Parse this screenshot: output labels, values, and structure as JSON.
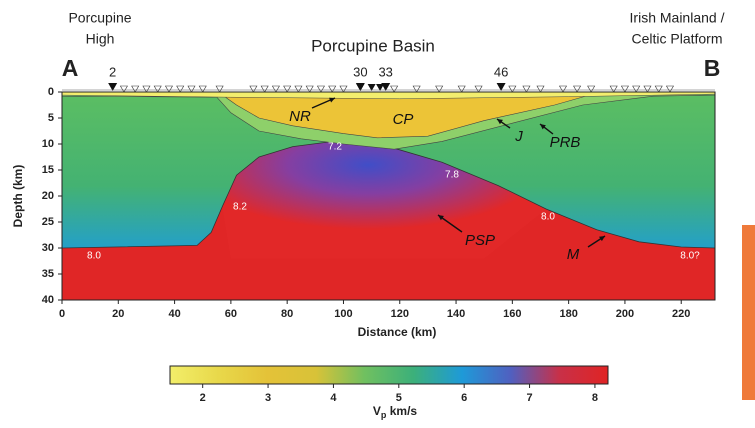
{
  "chart_data": {
    "type": "section",
    "title": "Porcupine Basin",
    "left_region": [
      "Porcupine",
      "High"
    ],
    "right_region": [
      "Irish Mainland /",
      "Celtic Platform"
    ],
    "profile_start": "A",
    "profile_end": "B",
    "stations": {
      "labels": [
        2,
        30,
        33,
        46
      ],
      "x": [
        18,
        106,
        115,
        156
      ]
    },
    "xlabel": "Distance (km)",
    "ylabel": "Depth (km)",
    "xlim": [
      0,
      232
    ],
    "ylim": [
      0,
      40
    ],
    "inverted_y": true,
    "xticks": [
      0,
      20,
      40,
      60,
      80,
      100,
      120,
      140,
      160,
      180,
      200,
      220
    ],
    "yticks": [
      0,
      5,
      10,
      15,
      20,
      25,
      30,
      35,
      40
    ],
    "annotations": [
      "NR",
      "CP",
      "J",
      "PRB",
      "PSP",
      "M"
    ],
    "velocity_labels": [
      "7.2",
      "7.8",
      "8.2",
      "8.0",
      "8.0",
      "8.0?"
    ],
    "colorbar": {
      "label": [
        "V",
        "p",
        " km/s"
      ],
      "clim": [
        1.5,
        8.2
      ],
      "ticks": [
        2,
        3,
        4,
        5,
        6,
        7,
        8
      ],
      "colors": [
        "#f2ee6a",
        "#e8d84a",
        "#e4c238",
        "#d8c238",
        "#70c060",
        "#3cb07a",
        "#1e9ad8",
        "#5060c0",
        "#c83048",
        "#e02424"
      ]
    }
  }
}
